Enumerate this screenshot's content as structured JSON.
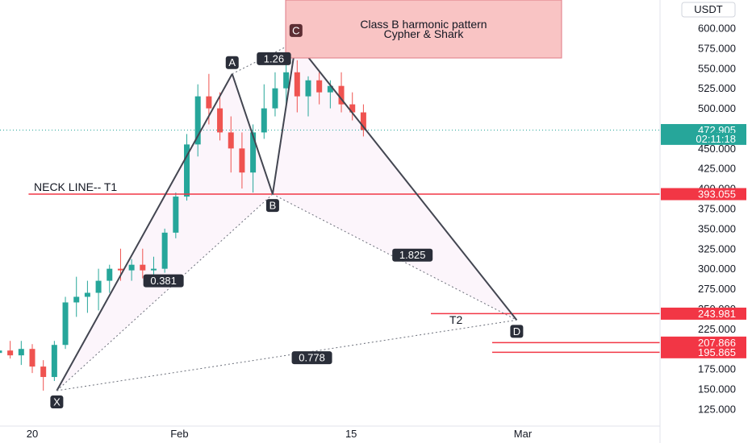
{
  "chart_data": {
    "type": "candlestick",
    "currency_button": "USDT",
    "y_ticks": [
      600,
      575,
      550,
      525,
      500,
      450,
      425,
      400,
      375,
      350,
      325,
      300,
      275,
      250,
      225,
      200,
      175,
      150,
      125
    ],
    "y_tick_labels": [
      "600.000",
      "575.000",
      "550.000",
      "525.000",
      "500.000",
      "450.000",
      "425.000",
      "400.000",
      "375.000",
      "350.000",
      "325.000",
      "300.000",
      "275.000",
      "250.000",
      "225.000",
      "200.000",
      "175.000",
      "150.000",
      "125.000"
    ],
    "x_ticks": [
      {
        "day": 0,
        "label": "20"
      },
      {
        "day": 12,
        "label": "Feb"
      },
      {
        "day": 26,
        "label": "15"
      },
      {
        "day": 40,
        "label": "Mar"
      }
    ],
    "price_labels": [
      {
        "value": 472.905,
        "text": "472.905",
        "color": "#26a69a"
      },
      {
        "value": 462,
        "text": "02:11:18",
        "color": "#26a69a"
      },
      {
        "value": 393.055,
        "text": "393.055",
        "color": "#f23645"
      },
      {
        "value": 243.981,
        "text": "243.981",
        "color": "#f23645"
      },
      {
        "value": 207.866,
        "text": "207.866",
        "color": "#f23645"
      },
      {
        "value": 195.865,
        "text": "195.865",
        "color": "#f23645"
      }
    ],
    "current_price": 472.905,
    "pattern_title": [
      "Class B harmonic pattern",
      "Cypher & Shark"
    ],
    "neck_line_label": "NECK LINE-- T1",
    "target2_label": "T2",
    "pattern_points": [
      {
        "name": "X",
        "day": 2.0,
        "price": 148
      },
      {
        "name": "A",
        "day": 16.3,
        "price": 543
      },
      {
        "name": "B",
        "day": 19.6,
        "price": 393
      },
      {
        "name": "C",
        "day": 21.5,
        "price": 583
      },
      {
        "name": "D",
        "day": 39.5,
        "price": 236
      }
    ],
    "ratios": [
      {
        "text": "1.26",
        "day": 19.7,
        "price": 562
      },
      {
        "text": "0.381",
        "day": 10.7,
        "price": 285
      },
      {
        "text": "1.825",
        "day": 31.0,
        "price": 317
      },
      {
        "text": "0.778",
        "day": 22.8,
        "price": 189
      }
    ],
    "horizontal_lines": [
      {
        "price": 393.055,
        "from_day": -0.3,
        "to_day": 52
      },
      {
        "price": 243.981,
        "from_day": 32.5,
        "to_day": 52
      },
      {
        "price": 207.866,
        "from_day": 37.5,
        "to_day": 52
      },
      {
        "price": 195.865,
        "from_day": 37.5,
        "to_day": 52
      }
    ],
    "candles": [
      {
        "o": 195,
        "h": 205,
        "l": 186,
        "c": 198
      },
      {
        "o": 198,
        "h": 210,
        "l": 188,
        "c": 192
      },
      {
        "o": 192,
        "h": 210,
        "l": 180,
        "c": 200
      },
      {
        "o": 200,
        "h": 206,
        "l": 170,
        "c": 178
      },
      {
        "o": 178,
        "h": 186,
        "l": 148,
        "c": 165
      },
      {
        "o": 165,
        "h": 210,
        "l": 160,
        "c": 205
      },
      {
        "o": 205,
        "h": 265,
        "l": 200,
        "c": 258
      },
      {
        "o": 258,
        "h": 290,
        "l": 240,
        "c": 265
      },
      {
        "o": 265,
        "h": 285,
        "l": 245,
        "c": 270
      },
      {
        "o": 270,
        "h": 300,
        "l": 248,
        "c": 285
      },
      {
        "o": 285,
        "h": 305,
        "l": 270,
        "c": 300
      },
      {
        "o": 300,
        "h": 325,
        "l": 285,
        "c": 298
      },
      {
        "o": 298,
        "h": 312,
        "l": 285,
        "c": 305
      },
      {
        "o": 305,
        "h": 325,
        "l": 288,
        "c": 298
      },
      {
        "o": 298,
        "h": 315,
        "l": 285,
        "c": 300
      },
      {
        "o": 300,
        "h": 350,
        "l": 295,
        "c": 345
      },
      {
        "o": 345,
        "h": 395,
        "l": 338,
        "c": 390
      },
      {
        "o": 390,
        "h": 468,
        "l": 385,
        "c": 455
      },
      {
        "o": 455,
        "h": 530,
        "l": 440,
        "c": 515
      },
      {
        "o": 515,
        "h": 543,
        "l": 480,
        "c": 500
      },
      {
        "o": 500,
        "h": 520,
        "l": 460,
        "c": 470
      },
      {
        "o": 470,
        "h": 490,
        "l": 420,
        "c": 450
      },
      {
        "o": 450,
        "h": 470,
        "l": 400,
        "c": 420
      },
      {
        "o": 420,
        "h": 480,
        "l": 395,
        "c": 470
      },
      {
        "o": 470,
        "h": 530,
        "l": 462,
        "c": 500
      },
      {
        "o": 500,
        "h": 545,
        "l": 490,
        "c": 525
      },
      {
        "o": 525,
        "h": 583,
        "l": 500,
        "c": 545
      },
      {
        "o": 545,
        "h": 560,
        "l": 495,
        "c": 515
      },
      {
        "o": 515,
        "h": 540,
        "l": 490,
        "c": 535
      },
      {
        "o": 535,
        "h": 545,
        "l": 505,
        "c": 520
      },
      {
        "o": 520,
        "h": 535,
        "l": 500,
        "c": 528
      },
      {
        "o": 528,
        "h": 545,
        "l": 495,
        "c": 505
      },
      {
        "o": 505,
        "h": 520,
        "l": 485,
        "c": 495
      },
      {
        "o": 495,
        "h": 505,
        "l": 465,
        "c": 473
      }
    ]
  }
}
